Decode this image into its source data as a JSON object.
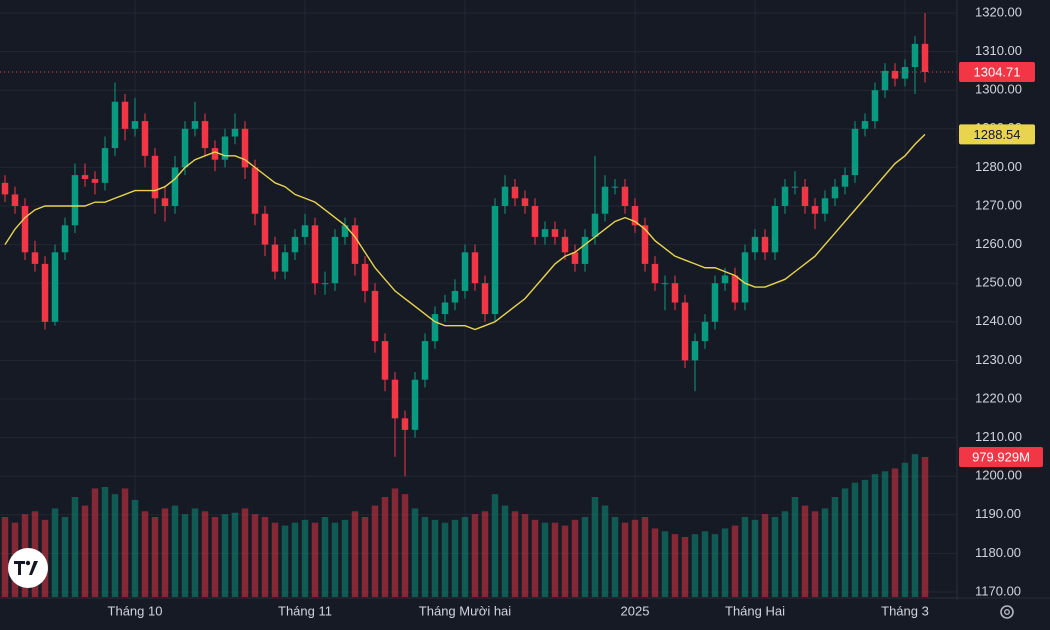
{
  "chart_data": {
    "type": "candlestick",
    "categories": [
      null,
      null,
      null,
      null,
      null,
      null,
      null,
      null,
      null,
      null,
      null,
      null,
      null,
      "Tháng 10",
      null,
      null,
      null,
      null,
      null,
      null,
      null,
      null,
      null,
      null,
      null,
      null,
      null,
      null,
      null,
      null,
      "Tháng 11",
      null,
      null,
      null,
      null,
      null,
      null,
      null,
      null,
      null,
      null,
      null,
      null,
      null,
      null,
      null,
      "Tháng Mười hai",
      null,
      null,
      null,
      null,
      null,
      null,
      null,
      null,
      null,
      null,
      null,
      null,
      null,
      null,
      null,
      null,
      "2025",
      null,
      null,
      null,
      null,
      null,
      null,
      null,
      null,
      null,
      null,
      null,
      "Tháng Hai",
      null,
      null,
      null,
      null,
      null,
      null,
      null,
      null,
      null,
      null,
      null,
      null,
      null,
      null,
      "Tháng 3",
      null,
      null
    ],
    "ohlc": [
      [
        1276,
        1278,
        1271,
        1273
      ],
      [
        1273,
        1275,
        1268,
        1270
      ],
      [
        1270,
        1272,
        1256,
        1258
      ],
      [
        1258,
        1261,
        1253,
        1255
      ],
      [
        1255,
        1257,
        1238,
        1240
      ],
      [
        1240,
        1260,
        1239,
        1258
      ],
      [
        1258,
        1267,
        1256,
        1265
      ],
      [
        1265,
        1281,
        1263,
        1278
      ],
      [
        1278,
        1281,
        1275,
        1277
      ],
      [
        1277,
        1279,
        1273,
        1276
      ],
      [
        1276,
        1288,
        1274,
        1285
      ],
      [
        1285,
        1302,
        1283,
        1297
      ],
      [
        1297,
        1299,
        1287,
        1290
      ],
      [
        1290,
        1298,
        1288,
        1292
      ],
      [
        1292,
        1294,
        1280,
        1283
      ],
      [
        1283,
        1285,
        1268,
        1272
      ],
      [
        1272,
        1275,
        1266,
        1270
      ],
      [
        1270,
        1283,
        1268,
        1280
      ],
      [
        1280,
        1292,
        1278,
        1290
      ],
      [
        1290,
        1297,
        1288,
        1292
      ],
      [
        1292,
        1294,
        1283,
        1285
      ],
      [
        1285,
        1287,
        1279,
        1282
      ],
      [
        1282,
        1290,
        1280,
        1288
      ],
      [
        1288,
        1294,
        1286,
        1290
      ],
      [
        1290,
        1292,
        1277,
        1280
      ],
      [
        1280,
        1282,
        1265,
        1268
      ],
      [
        1268,
        1270,
        1257,
        1260
      ],
      [
        1260,
        1262,
        1251,
        1253
      ],
      [
        1253,
        1260,
        1251,
        1258
      ],
      [
        1258,
        1264,
        1256,
        1262
      ],
      [
        1262,
        1268,
        1260,
        1265
      ],
      [
        1265,
        1267,
        1247,
        1250
      ],
      [
        1250,
        1253,
        1247,
        1250
      ],
      [
        1250,
        1264,
        1248,
        1262
      ],
      [
        1262,
        1267,
        1260,
        1265
      ],
      [
        1265,
        1267,
        1252,
        1255
      ],
      [
        1255,
        1257,
        1245,
        1248
      ],
      [
        1248,
        1250,
        1232,
        1235
      ],
      [
        1235,
        1237,
        1222,
        1225
      ],
      [
        1225,
        1227,
        1205,
        1215
      ],
      [
        1215,
        1217,
        1200,
        1212
      ],
      [
        1212,
        1227,
        1210,
        1225
      ],
      [
        1225,
        1237,
        1223,
        1235
      ],
      [
        1235,
        1244,
        1233,
        1242
      ],
      [
        1242,
        1247,
        1240,
        1245
      ],
      [
        1245,
        1251,
        1243,
        1248
      ],
      [
        1248,
        1260,
        1246,
        1258
      ],
      [
        1258,
        1260,
        1248,
        1250
      ],
      [
        1250,
        1252,
        1240,
        1242
      ],
      [
        1242,
        1272,
        1240,
        1270
      ],
      [
        1270,
        1278,
        1268,
        1275
      ],
      [
        1275,
        1277,
        1270,
        1272
      ],
      [
        1272,
        1274,
        1268,
        1270
      ],
      [
        1270,
        1272,
        1260,
        1262
      ],
      [
        1262,
        1266,
        1260,
        1264
      ],
      [
        1264,
        1266,
        1260,
        1262
      ],
      [
        1262,
        1264,
        1256,
        1258
      ],
      [
        1258,
        1260,
        1253,
        1255
      ],
      [
        1255,
        1264,
        1253,
        1262
      ],
      [
        1262,
        1283,
        1260,
        1268
      ],
      [
        1268,
        1278,
        1266,
        1275
      ],
      [
        1275,
        1277,
        1273,
        1275
      ],
      [
        1275,
        1277,
        1268,
        1270
      ],
      [
        1270,
        1272,
        1263,
        1265
      ],
      [
        1265,
        1267,
        1253,
        1255
      ],
      [
        1255,
        1257,
        1248,
        1250
      ],
      [
        1250,
        1252,
        1243,
        1250
      ],
      [
        1250,
        1252,
        1243,
        1245
      ],
      [
        1245,
        1247,
        1228,
        1230
      ],
      [
        1230,
        1237,
        1222,
        1235
      ],
      [
        1235,
        1242,
        1233,
        1240
      ],
      [
        1240,
        1252,
        1238,
        1250
      ],
      [
        1250,
        1254,
        1248,
        1252
      ],
      [
        1252,
        1254,
        1243,
        1245
      ],
      [
        1245,
        1260,
        1243,
        1258
      ],
      [
        1258,
        1264,
        1256,
        1262
      ],
      [
        1262,
        1264,
        1256,
        1258
      ],
      [
        1258,
        1272,
        1256,
        1270
      ],
      [
        1270,
        1277,
        1268,
        1275
      ],
      [
        1275,
        1279,
        1273,
        1275
      ],
      [
        1275,
        1277,
        1268,
        1270
      ],
      [
        1270,
        1272,
        1264,
        1268
      ],
      [
        1268,
        1274,
        1266,
        1272
      ],
      [
        1272,
        1277,
        1270,
        1275
      ],
      [
        1275,
        1280,
        1273,
        1278
      ],
      [
        1278,
        1292,
        1276,
        1290
      ],
      [
        1290,
        1294,
        1288,
        1292
      ],
      [
        1292,
        1302,
        1290,
        1300
      ],
      [
        1300,
        1307,
        1298,
        1305
      ],
      [
        1305,
        1307,
        1301,
        1303
      ],
      [
        1303,
        1308,
        1301,
        1306
      ],
      [
        1306,
        1314,
        1299,
        1312
      ],
      [
        1312,
        1320,
        1302,
        1304.71
      ]
    ],
    "volume": [
      560,
      520,
      580,
      600,
      540,
      620,
      560,
      700,
      640,
      760,
      770,
      720,
      760,
      680,
      600,
      560,
      620,
      640,
      580,
      620,
      600,
      560,
      580,
      590,
      620,
      580,
      560,
      520,
      500,
      520,
      540,
      520,
      560,
      520,
      540,
      600,
      560,
      640,
      700,
      760,
      720,
      620,
      560,
      540,
      520,
      540,
      560,
      580,
      600,
      720,
      640,
      600,
      580,
      540,
      520,
      520,
      500,
      540,
      560,
      700,
      640,
      560,
      520,
      540,
      560,
      480,
      460,
      440,
      420,
      440,
      460,
      440,
      480,
      500,
      560,
      540,
      580,
      560,
      600,
      700,
      640,
      600,
      620,
      700,
      760,
      800,
      820,
      860,
      880,
      900,
      940,
      1000,
      979.929
    ],
    "volume_label": "979.929M",
    "volume_lim": [
      0,
      1050
    ],
    "ma": [
      1260,
      1264,
      1267,
      1269,
      1270,
      1270,
      1270,
      1270,
      1270,
      1271,
      1271,
      1272,
      1273,
      1274,
      1274,
      1274,
      1275,
      1277,
      1280,
      1282,
      1283,
      1284,
      1283,
      1283,
      1282,
      1280,
      1278,
      1276,
      1275,
      1273,
      1272,
      1271,
      1269,
      1267,
      1265,
      1262,
      1258,
      1254,
      1251,
      1248,
      1246,
      1244,
      1242,
      1240,
      1239,
      1239,
      1239,
      1238,
      1239,
      1240,
      1242,
      1244,
      1246,
      1249,
      1252,
      1255,
      1257,
      1258,
      1260,
      1262,
      1264,
      1266,
      1267,
      1266,
      1264,
      1261,
      1259,
      1257,
      1256,
      1255,
      1254,
      1254,
      1253,
      1252,
      1250,
      1249,
      1249,
      1250,
      1251,
      1253,
      1255,
      1257,
      1260,
      1263,
      1266,
      1269,
      1272,
      1275,
      1278,
      1281,
      1283,
      1286,
      1288.54
    ],
    "ma_color": "#e8d44d",
    "up_color": "#089981",
    "down_color": "#f23645",
    "ylim": [
      1170,
      1320
    ],
    "yticks": [
      {
        "value": 1170,
        "label": "1170.00"
      },
      {
        "value": 1180,
        "label": "1180.00"
      },
      {
        "value": 1190,
        "label": "1190.00"
      },
      {
        "value": 1200,
        "label": "1200.00"
      },
      {
        "value": 1210,
        "label": "1210.00"
      },
      {
        "value": 1220,
        "label": "1220.00"
      },
      {
        "value": 1230,
        "label": "1230.00"
      },
      {
        "value": 1240,
        "label": "1240.00"
      },
      {
        "value": 1250,
        "label": "1250.00"
      },
      {
        "value": 1260,
        "label": "1260.00"
      },
      {
        "value": 1270,
        "label": "1270.00"
      },
      {
        "value": 1280,
        "label": "1280.00"
      },
      {
        "value": 1290,
        "label": "1290.00"
      },
      {
        "value": 1300,
        "label": "1300.00"
      },
      {
        "value": 1310,
        "label": "1310.00"
      },
      {
        "value": 1320,
        "label": "1320.00"
      }
    ],
    "grid": true
  }
}
